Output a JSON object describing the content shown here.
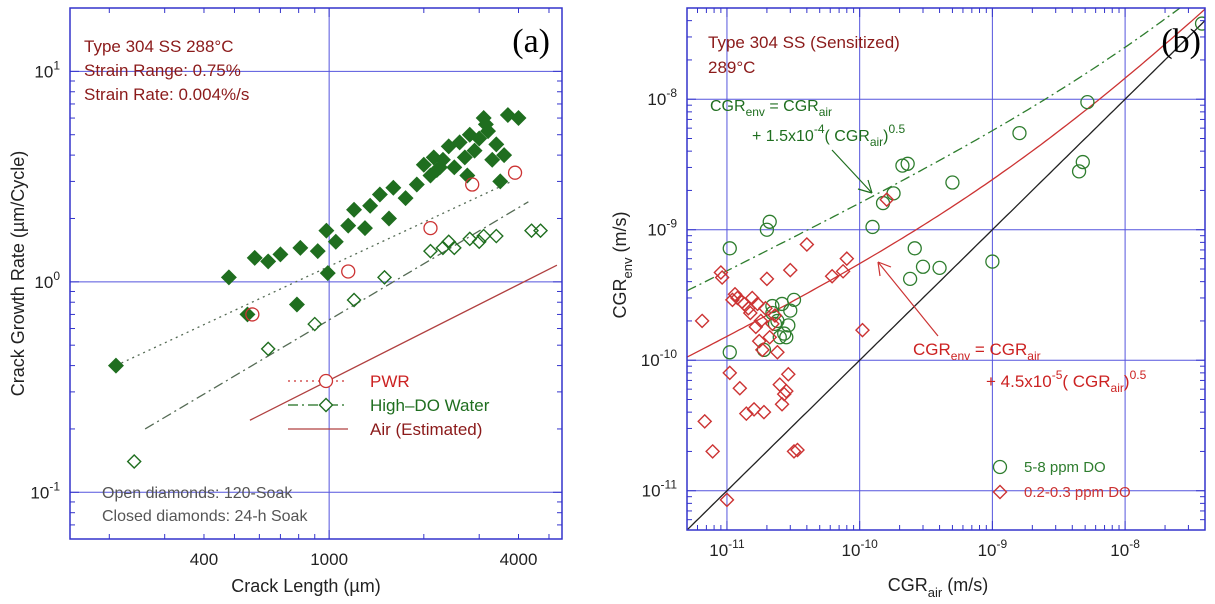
{
  "colors": {
    "frame": "#3333cc",
    "grid": "#5555dd",
    "green": "#1f6e1f",
    "red": "#cc3333",
    "dark_red": "#8b1a1a",
    "black": "#222222"
  },
  "chart_data": [
    {
      "id": "panel-a",
      "type": "scatter",
      "log_x": true,
      "log_y": true,
      "panel_label": "(a)",
      "xlabel": "Crack Length (µm)",
      "ylabel": "Crack Growth Rate (µm/Cycle)",
      "xlim": [
        150,
        5500
      ],
      "ylim": [
        0.06,
        20
      ],
      "x_ticks": [
        {
          "v": 400,
          "label": "400"
        },
        {
          "v": 1000,
          "label": "1000"
        },
        {
          "v": 4000,
          "label": "4000"
        }
      ],
      "y_ticks": [
        {
          "v": 0.1,
          "label": "10",
          "exp": "-1"
        },
        {
          "v": 1,
          "label": "10",
          "exp": "0"
        },
        {
          "v": 10,
          "label": "10",
          "exp": "1"
        }
      ],
      "gridlines_x": [
        1000
      ],
      "gridlines_y": [
        0.1,
        1,
        10
      ],
      "conditions": [
        "Type 304 SS  288°C",
        "Strain Range: 0.75%",
        "Strain Rate: 0.004%/s"
      ],
      "notes": [
        "Open diamonds: 120-Soak",
        "Closed diamonds: 24-h Soak"
      ],
      "legend": [
        {
          "label": "PWR",
          "style": "dotted",
          "marker": "circle",
          "color": "#cc3333",
          "text_color": "#cc2222"
        },
        {
          "label": "High–DO Water",
          "style": "dashdot",
          "marker": "diamond-open",
          "color": "#1f6e1f",
          "text_color": "#1f6e1f"
        },
        {
          "label": "Air (Estimated)",
          "style": "solid",
          "marker": "",
          "color": "#b04040",
          "text_color": "#8b1a1a"
        }
      ],
      "series": [
        {
          "name": "Closed diamonds: 24-h Soak",
          "marker": "diamond-filled",
          "color": "#1f6e1f",
          "points": [
            [
              210,
              0.4
            ],
            [
              480,
              1.05
            ],
            [
              550,
              0.7
            ],
            [
              580,
              1.3
            ],
            [
              640,
              1.25
            ],
            [
              700,
              1.35
            ],
            [
              790,
              0.78
            ],
            [
              810,
              1.45
            ],
            [
              920,
              1.4
            ],
            [
              980,
              1.75
            ],
            [
              990,
              1.1
            ],
            [
              1050,
              1.55
            ],
            [
              1150,
              1.85
            ],
            [
              1200,
              2.2
            ],
            [
              1300,
              1.8
            ],
            [
              1350,
              2.3
            ],
            [
              1450,
              2.6
            ],
            [
              1550,
              2.0
            ],
            [
              1600,
              2.8
            ],
            [
              1750,
              2.5
            ],
            [
              1900,
              2.9
            ],
            [
              2000,
              3.6
            ],
            [
              2100,
              3.2
            ],
            [
              2150,
              3.9
            ],
            [
              2200,
              3.4
            ],
            [
              2300,
              3.8
            ],
            [
              2400,
              4.4
            ],
            [
              2500,
              3.5
            ],
            [
              2600,
              4.6
            ],
            [
              2700,
              3.9
            ],
            [
              2800,
              5.0
            ],
            [
              2900,
              4.2
            ],
            [
              3000,
              4.8
            ],
            [
              3100,
              6.0
            ],
            [
              3200,
              5.2
            ],
            [
              3300,
              3.8
            ],
            [
              3400,
              4.5
            ],
            [
              3500,
              3.0
            ],
            [
              3600,
              4.0
            ],
            [
              3700,
              6.2
            ],
            [
              4000,
              6.0
            ],
            [
              3150,
              5.6
            ],
            [
              2750,
              3.2
            ],
            [
              2250,
              3.5
            ]
          ]
        },
        {
          "name": "PWR",
          "marker": "circle",
          "color": "#cc3333",
          "points": [
            [
              570,
              0.7
            ],
            [
              1150,
              1.12
            ],
            [
              2100,
              1.8
            ],
            [
              2850,
              2.9
            ],
            [
              3900,
              3.3
            ]
          ]
        },
        {
          "name": "High–DO Water",
          "marker": "diamond-open",
          "color": "#1f6e1f",
          "points": [
            [
              240,
              0.14
            ],
            [
              640,
              0.48
            ],
            [
              900,
              0.63
            ],
            [
              1200,
              0.82
            ],
            [
              1500,
              1.05
            ],
            [
              2100,
              1.4
            ],
            [
              2300,
              1.45
            ],
            [
              2400,
              1.55
            ],
            [
              2500,
              1.45
            ],
            [
              2800,
              1.6
            ],
            [
              3000,
              1.55
            ],
            [
              3100,
              1.65
            ],
            [
              3400,
              1.65
            ],
            [
              4400,
              1.75
            ],
            [
              4700,
              1.75
            ]
          ]
        }
      ],
      "fit_lines": [
        {
          "name": "PWR fit",
          "style": "dotted",
          "color": "#556b55",
          "points": [
            [
              210,
              0.4
            ],
            [
              3800,
              3.0
            ]
          ]
        },
        {
          "name": "High-DO fit",
          "style": "dashdot",
          "color": "#556b55",
          "points": [
            [
              260,
              0.2
            ],
            [
              4300,
              2.4
            ]
          ]
        },
        {
          "name": "Air (Estimated)",
          "style": "solid",
          "color": "#b04040",
          "points": [
            [
              560,
              0.22
            ],
            [
              5300,
              1.2
            ]
          ]
        }
      ]
    },
    {
      "id": "panel-b",
      "type": "scatter",
      "log_x": true,
      "log_y": true,
      "panel_label": "(b)",
      "xlabel": "CGR",
      "xlabel_sub": "air",
      "xlabel_suffix": " (m/s)",
      "ylabel": "CGR",
      "ylabel_sub": "env",
      "ylabel_suffix": " (m/s)",
      "xlim": [
        5e-12,
        4e-08
      ],
      "ylim": [
        5e-12,
        5e-08
      ],
      "x_ticks": [
        {
          "v": 1e-11,
          "label": "10",
          "exp": "-11"
        },
        {
          "v": 1e-10,
          "label": "10",
          "exp": "-10"
        },
        {
          "v": 1e-09,
          "label": "10",
          "exp": "-9"
        },
        {
          "v": 1e-08,
          "label": "10",
          "exp": "-8"
        }
      ],
      "y_ticks": [
        {
          "v": 1e-11,
          "label": "10",
          "exp": "-11"
        },
        {
          "v": 1e-10,
          "label": "10",
          "exp": "-10"
        },
        {
          "v": 1e-09,
          "label": "10",
          "exp": "-9"
        },
        {
          "v": 1e-08,
          "label": "10",
          "exp": "-8"
        }
      ],
      "gridlines_x": [
        1e-11,
        1e-10,
        1e-09,
        1e-08
      ],
      "gridlines_y": [
        1e-11,
        1e-10,
        1e-09,
        1e-08
      ],
      "conditions": [
        "Type 304 SS (Sensitized)",
        "289°C"
      ],
      "green_eq": {
        "line1": "CGR",
        "line1_sub": "env",
        "line1_mid": " = CGR",
        "line1_sub2": "air",
        "line2_pre": "+ 1.5x10",
        "line2_exp": "-4",
        "line2_mid": "( CGR",
        "line2_sub": "air",
        "line2_post": ")",
        "line2_exp2": "0.5"
      },
      "red_eq": {
        "line1": "CGR",
        "line1_sub": "env",
        "line1_mid": " = CGR",
        "line1_sub2": "air",
        "line2_pre": "+ 4.5x10",
        "line2_exp": "-5",
        "line2_mid": "( CGR",
        "line2_sub": "air",
        "line2_post": ")",
        "line2_exp2": "0.5"
      },
      "legend": [
        {
          "label": "5-8 ppm DO",
          "marker": "circle",
          "color": "#2e7d2e"
        },
        {
          "label": "0.2-0.3 ppm DO",
          "marker": "diamond-open",
          "color": "#cc3333"
        }
      ],
      "series": [
        {
          "name": "5-8 ppm DO",
          "marker": "circle",
          "color": "#2e7d2e",
          "points": [
            [
              1.05e-11,
              7.2e-10
            ],
            [
              1.05e-11,
              1.15e-10
            ],
            [
              1.9e-11,
              1.2e-10
            ],
            [
              2e-11,
              1e-09
            ],
            [
              2.1e-11,
              1.15e-09
            ],
            [
              2.2e-11,
              2.3e-10
            ],
            [
              2.3e-11,
              1.9e-10
            ],
            [
              2.5e-11,
              1.5e-10
            ],
            [
              2.6e-11,
              2.7e-10
            ],
            [
              2.7e-11,
              1.6e-10
            ],
            [
              2.8e-11,
              1.5e-10
            ],
            [
              2.9e-11,
              1.85e-10
            ],
            [
              3e-11,
              2.4e-10
            ],
            [
              3.2e-11,
              2.9e-10
            ],
            [
              2.4e-11,
              2e-10
            ],
            [
              2.2e-11,
              2.6e-10
            ],
            [
              1.25e-10,
              1.05e-09
            ],
            [
              1.5e-10,
              1.6e-09
            ],
            [
              1.8e-10,
              1.9e-09
            ],
            [
              2.1e-10,
              3.1e-09
            ],
            [
              2.3e-10,
              3.2e-09
            ],
            [
              2.4e-10,
              4.2e-10
            ],
            [
              2.6e-10,
              7.2e-10
            ],
            [
              3e-10,
              5.2e-10
            ],
            [
              4e-10,
              5.1e-10
            ],
            [
              5e-10,
              2.3e-09
            ],
            [
              1e-09,
              5.7e-10
            ],
            [
              1.6e-09,
              5.5e-09
            ],
            [
              4.5e-09,
              2.8e-09
            ],
            [
              4.8e-09,
              3.3e-09
            ],
            [
              5.2e-09,
              9.5e-09
            ],
            [
              3.8e-08,
              3.8e-08
            ]
          ]
        },
        {
          "name": "0.2-0.3 ppm DO",
          "marker": "diamond-open",
          "color": "#cc3333",
          "points": [
            [
              6.5e-12,
              2e-10
            ],
            [
              6.8e-12,
              3.4e-11
            ],
            [
              7.8e-12,
              2e-11
            ],
            [
              9e-12,
              4.7e-10
            ],
            [
              9.2e-12,
              4.3e-10
            ],
            [
              1e-11,
              8.5e-12
            ],
            [
              1.05e-11,
              8e-11
            ],
            [
              1.1e-11,
              2.9e-10
            ],
            [
              1.15e-11,
              3.2e-10
            ],
            [
              1.2e-11,
              3e-10
            ],
            [
              1.25e-11,
              6.1e-11
            ],
            [
              1.3e-11,
              2.8e-10
            ],
            [
              1.35e-11,
              2.7e-10
            ],
            [
              1.4e-11,
              3.9e-11
            ],
            [
              1.45e-11,
              2.5e-10
            ],
            [
              1.5e-11,
              2.3e-10
            ],
            [
              1.55e-11,
              3e-10
            ],
            [
              1.6e-11,
              4.2e-11
            ],
            [
              1.65e-11,
              1.8e-10
            ],
            [
              1.7e-11,
              2.7e-10
            ],
            [
              1.75e-11,
              1.4e-10
            ],
            [
              1.8e-11,
              2e-10
            ],
            [
              1.85e-11,
              1.2e-10
            ],
            [
              1.9e-11,
              4e-11
            ],
            [
              1.95e-11,
              2.5e-10
            ],
            [
              2e-11,
              4.2e-10
            ],
            [
              2.1e-11,
              1.5e-10
            ],
            [
              2.2e-11,
              1.9e-10
            ],
            [
              2.3e-11,
              2.2e-10
            ],
            [
              2.4e-11,
              1.15e-10
            ],
            [
              2.5e-11,
              6.5e-11
            ],
            [
              2.6e-11,
              4.6e-11
            ],
            [
              2.7e-11,
              5.5e-11
            ],
            [
              2.8e-11,
              5.8e-11
            ],
            [
              2.9e-11,
              7.8e-11
            ],
            [
              3e-11,
              4.9e-10
            ],
            [
              3.2e-11,
              2e-11
            ],
            [
              3.4e-11,
              2.05e-11
            ],
            [
              4e-11,
              7.7e-10
            ],
            [
              6.2e-11,
              4.4e-10
            ],
            [
              7.5e-11,
              4.8e-10
            ],
            [
              8e-11,
              6e-10
            ],
            [
              1.05e-10,
              1.7e-10
            ],
            [
              1.6e-10,
              1.7e-09
            ]
          ]
        }
      ],
      "curves": [
        {
          "name": "CGRenv = CGRair",
          "style": "solid",
          "color": "#222222",
          "coef": 0
        },
        {
          "name": "High-DO model",
          "style": "dashdot",
          "color": "#2e7d2e",
          "coef": 0.00015
        },
        {
          "name": "Low-DO model",
          "style": "solid",
          "color": "#cc3333",
          "coef": 4.5e-05
        }
      ]
    }
  ]
}
